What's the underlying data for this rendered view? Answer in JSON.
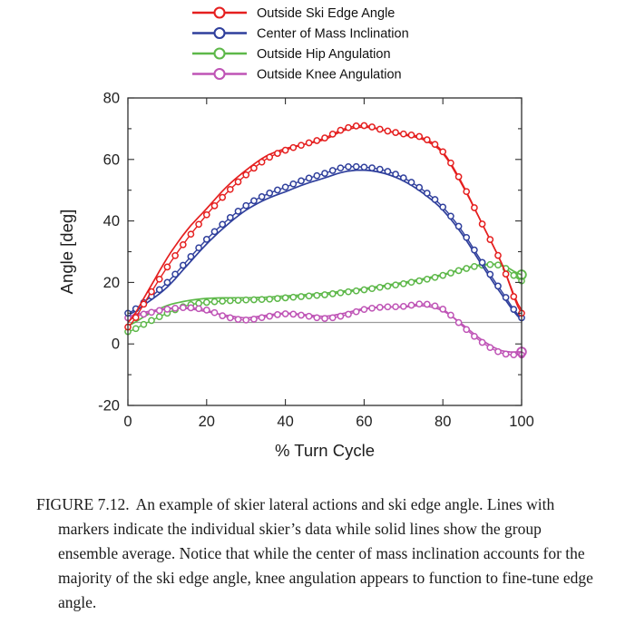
{
  "figure": {
    "caption_label": "FIGURE 7.12.",
    "caption_text": "An example of skier lateral actions and ski edge angle. Lines with markers indicate the individual skier’s data while solid lines show the group ensemble average. Notice that while the center of mass inclination accounts for the majority of the ski edge angle, knee angulation appears to function to fine-tune edge angle."
  },
  "chart_data": {
    "type": "line",
    "title": "",
    "xlabel": "% Turn Cycle",
    "ylabel": "Angle [deg]",
    "xlim": [
      0,
      100
    ],
    "ylim": [
      -20,
      80
    ],
    "x_ticks": [
      0,
      20,
      40,
      60,
      80,
      100
    ],
    "y_ticks": [
      -20,
      0,
      20,
      40,
      60,
      80
    ],
    "y_minor_ticks": [
      -10,
      10,
      30,
      50,
      70
    ],
    "grid": false,
    "legend_position": "above-plot-left",
    "reference_line_y": 7,
    "reference_line_color": "#9b9b9b",
    "axis_color": "#2e2e2e",
    "x": [
      0,
      5,
      10,
      15,
      20,
      25,
      30,
      35,
      40,
      45,
      50,
      55,
      60,
      65,
      70,
      75,
      80,
      85,
      90,
      95,
      100
    ],
    "series": [
      {
        "name": "Outside Ski Edge Angle",
        "color": "#e51f1f",
        "markers": [
          5.5,
          15,
          25,
          34,
          42,
          49,
          55,
          60,
          63,
          65,
          67,
          70,
          71,
          69.5,
          68.3,
          67,
          62.5,
          52,
          39,
          26,
          10
        ],
        "ensemble": [
          7,
          17,
          28,
          37,
          44,
          51,
          56.5,
          61,
          63.5,
          65,
          66.5,
          69.5,
          70.5,
          69.5,
          68,
          66.5,
          62,
          51.5,
          39,
          26,
          11
        ],
        "end_marker": false
      },
      {
        "name": "Center of Mass Inclination",
        "color": "#2f3f9c",
        "markers": [
          10,
          14.5,
          20,
          27,
          34,
          40,
          45,
          48.5,
          51,
          53.5,
          55.5,
          57.5,
          57.5,
          56.5,
          54,
          50,
          44.5,
          36.5,
          26.5,
          17,
          8.5
        ],
        "ensemble": [
          9.5,
          13.5,
          18.5,
          25.5,
          32.5,
          38.5,
          43.5,
          47,
          49.5,
          52,
          54,
          56,
          56.5,
          55.5,
          53,
          49,
          43.5,
          35.5,
          25.5,
          16,
          8
        ],
        "end_marker": false
      },
      {
        "name": "Outside Hip Angulation",
        "color": "#5db849",
        "markers": [
          4,
          7,
          10,
          12.5,
          13.5,
          14,
          14.3,
          14.5,
          15,
          15.5,
          16,
          16.8,
          17.6,
          18.6,
          19.6,
          20.8,
          22.3,
          24.2,
          25.6,
          25.3,
          20.5
        ],
        "ensemble": [
          6,
          9.5,
          12.5,
          14,
          14.8,
          15,
          15,
          15.2,
          15.6,
          16,
          16.5,
          17.2,
          18,
          19,
          20,
          21.2,
          22.6,
          24.4,
          25.8,
          25.6,
          22.5
        ],
        "end_marker": true
      },
      {
        "name": "Outside Knee Angulation",
        "color": "#bf54b6",
        "markers": [
          8.5,
          10,
          11.3,
          11.8,
          11,
          8.8,
          7.8,
          8.8,
          9.8,
          9.2,
          8.3,
          9.3,
          11.2,
          12,
          12.2,
          13,
          11.3,
          5.8,
          0.5,
          -3,
          -3.6
        ],
        "ensemble": [
          9,
          10.5,
          11.5,
          11.5,
          10.5,
          9.3,
          8.5,
          9.3,
          10,
          9.5,
          9,
          10,
          11.5,
          12,
          12,
          12.4,
          10.8,
          6.3,
          1.2,
          -2.2,
          -2.6
        ],
        "end_marker": true
      }
    ]
  }
}
